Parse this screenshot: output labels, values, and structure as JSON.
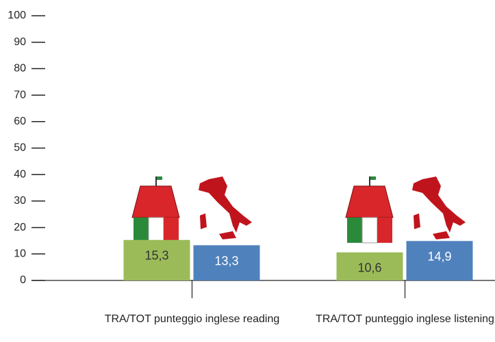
{
  "chart_data": {
    "type": "bar",
    "categories": [
      "TRA/TOT punteggio inglese reading",
      "TRA/TOT punteggio inglese listening"
    ],
    "series": [
      {
        "color": "#9bbb59",
        "values": [
          15.3,
          10.6
        ],
        "value_labels": [
          "15,3",
          "10,6"
        ]
      },
      {
        "color": "#4f81bd",
        "values": [
          13.3,
          14.9
        ],
        "value_labels": [
          "13,3",
          "14,9"
        ]
      }
    ],
    "ylim": [
      0,
      100
    ],
    "yticks": [
      0,
      10,
      20,
      30,
      40,
      50,
      60,
      70,
      80,
      90,
      100
    ]
  }
}
